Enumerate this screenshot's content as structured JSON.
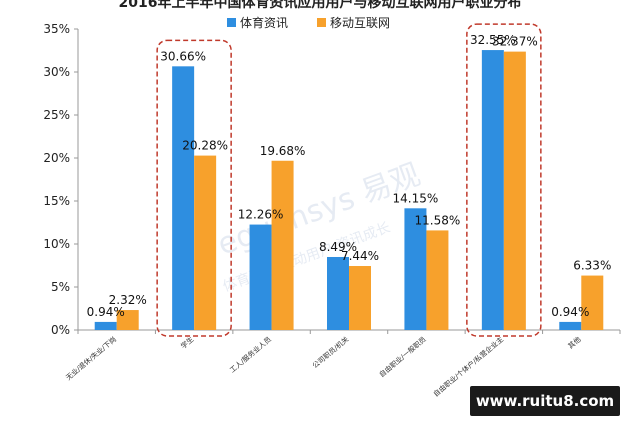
{
  "chart_data": {
    "type": "bar",
    "title": "2016年上半年中国体育资讯应用用户与移动互联网用户职业分布",
    "categories": [
      "无业/退休/失业/下岗",
      "学生",
      "工人/服务业人员",
      "公司职员/机关",
      "自由职业/一般职员",
      "自由职业/个体户/私营企业主",
      "其他"
    ],
    "series": [
      {
        "name": "体育资讯",
        "values": [
          0.94,
          30.66,
          12.26,
          8.49,
          14.15,
          32.55,
          0.94
        ],
        "labels": [
          "0.94%",
          "30.66%",
          "12.26%",
          "8.49%",
          "14.15%",
          "32.55%",
          "0.94%"
        ]
      },
      {
        "name": "移动互联网",
        "values": [
          2.32,
          20.28,
          19.68,
          7.44,
          11.58,
          32.37,
          6.33
        ],
        "labels": [
          "2.32%",
          "20.28%",
          "19.68%",
          "7.44%",
          "11.58%",
          "32.37%",
          "6.33%"
        ]
      }
    ],
    "ylim": [
      0,
      35
    ],
    "yticks": [
      "0%",
      "5%",
      "10%",
      "15%",
      "20%",
      "25%",
      "30%",
      "35%"
    ],
    "legend": "top",
    "highlighted_categories": [
      "学生",
      "自由职业/个体户/私营企业主"
    ],
    "colors": {
      "series1": "#2e8ee0",
      "series2": "#f7a12c",
      "highlight": "#c0392b",
      "axis": "#999999"
    }
  },
  "watermark": {
    "text_main": "eguansys 易观",
    "text_sub": "体育资讯·驱动用户·资讯成长"
  },
  "site_banner": "www.ruitu8.com"
}
